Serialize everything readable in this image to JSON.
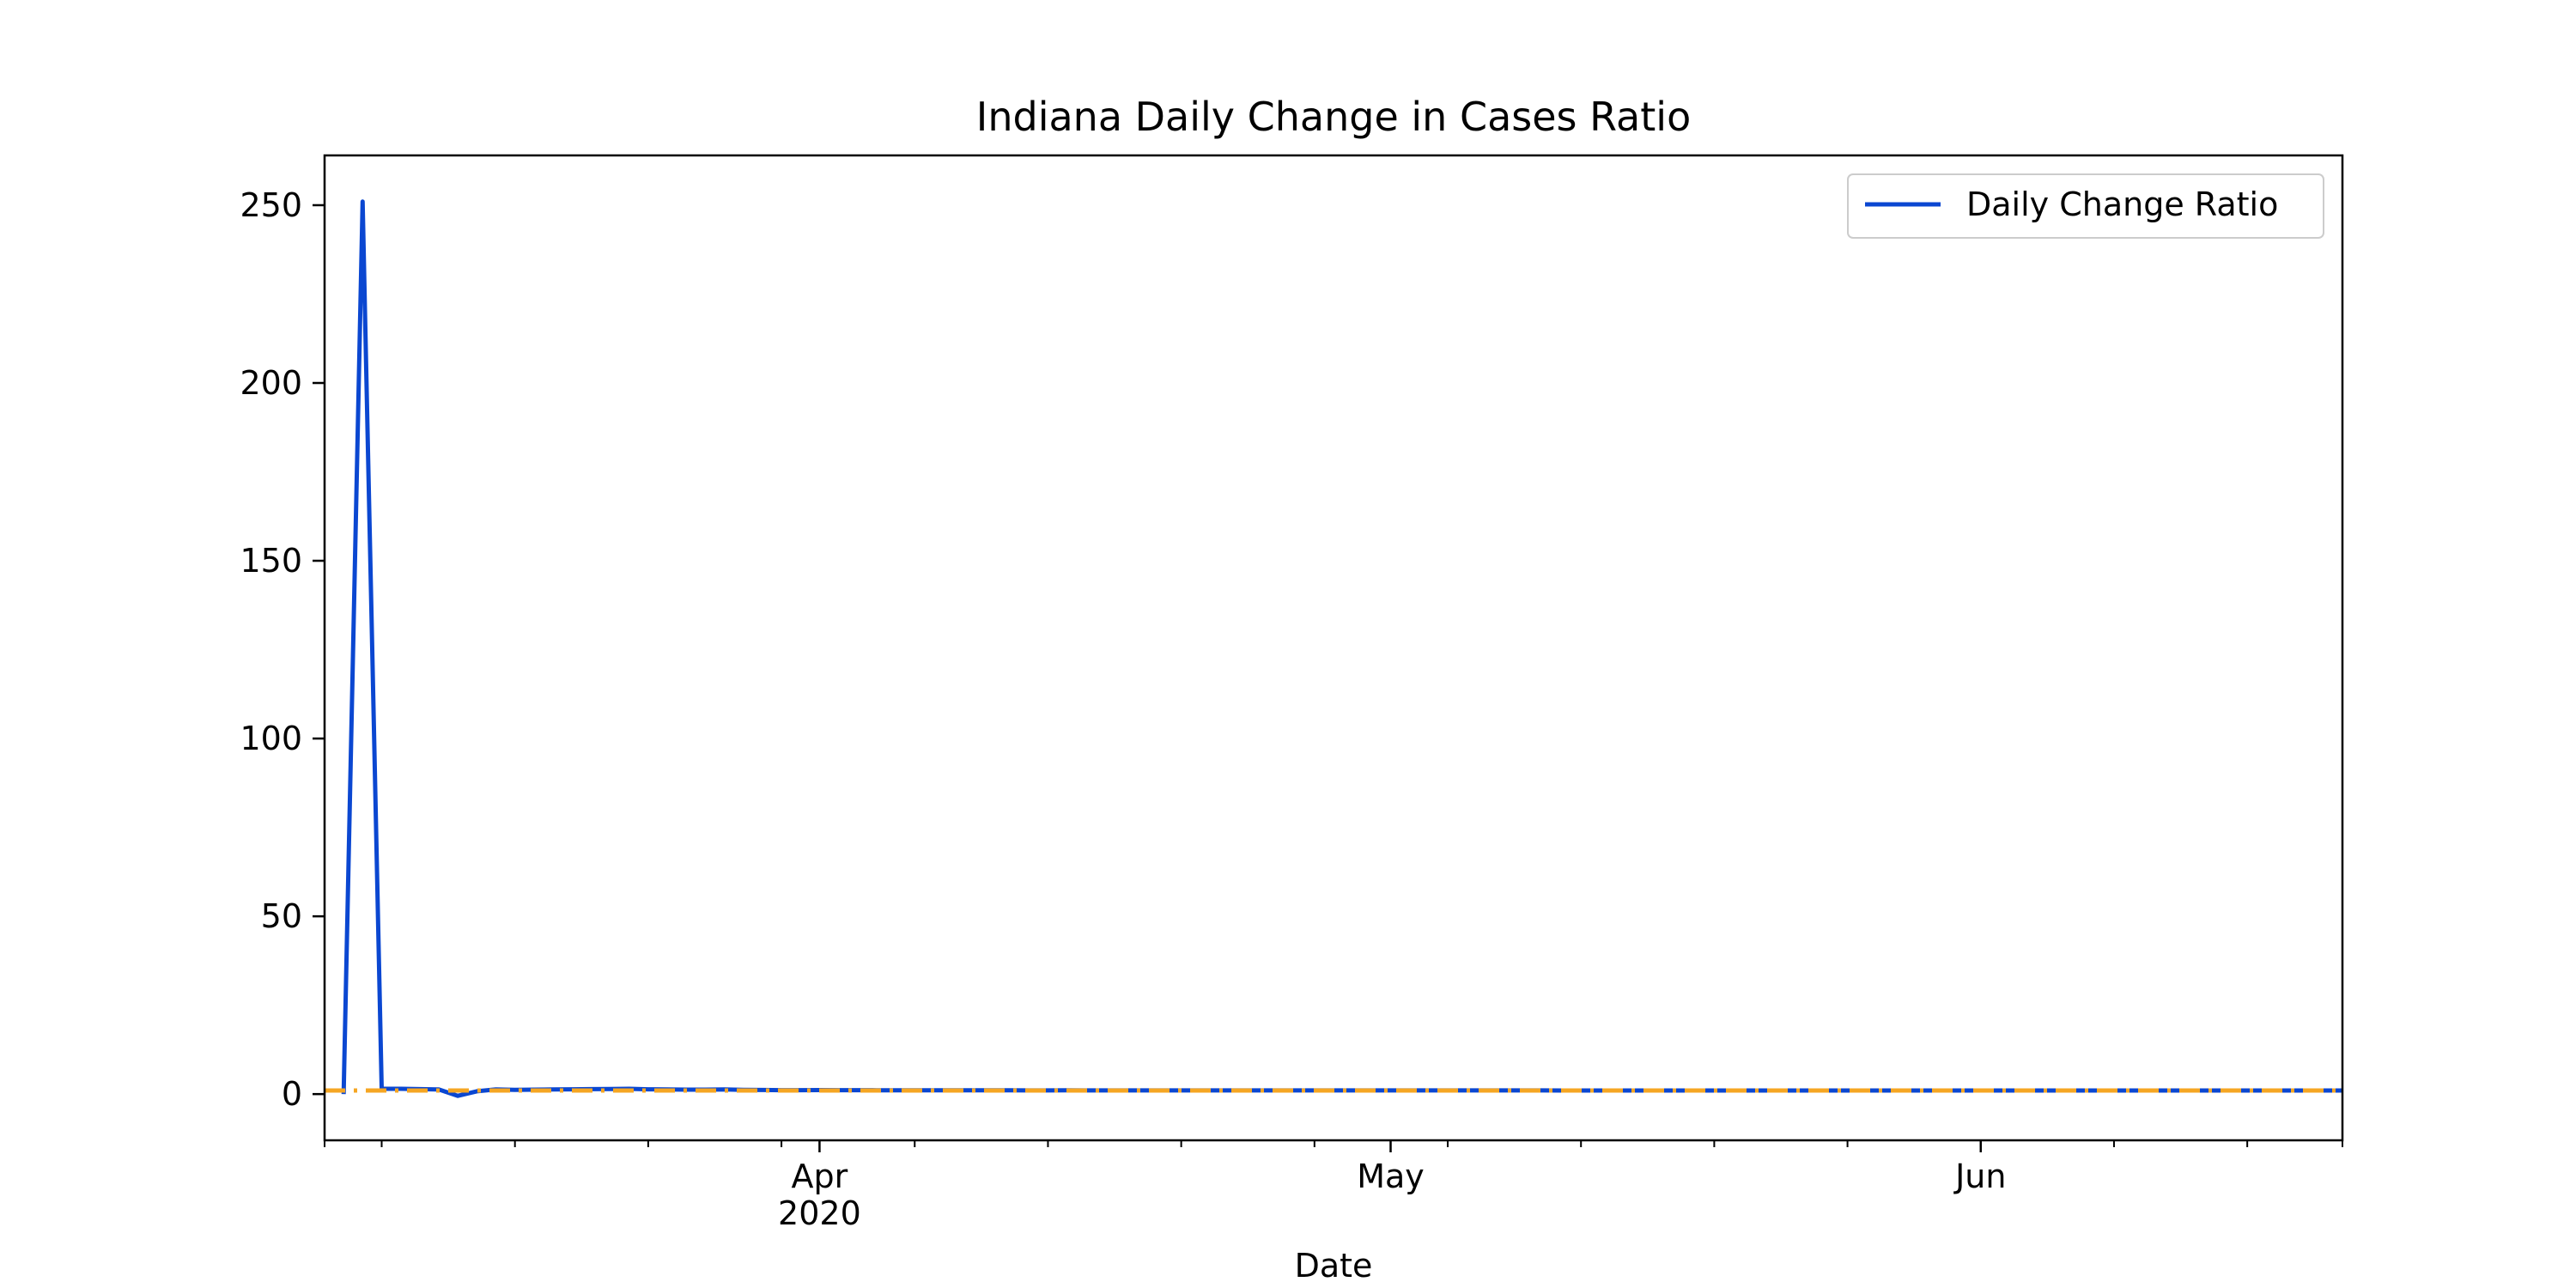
{
  "chart_data": {
    "type": "line",
    "title": "Indiana Daily Change in Cases Ratio",
    "xlabel": "Date",
    "ylabel": "",
    "x_range": [
      "2020-03-06",
      "2020-06-20"
    ],
    "ylim": [
      -13,
      264
    ],
    "grid": false,
    "legend_position": "top-right",
    "x_ticks": [
      {
        "date": "2020-04-01",
        "label": "Apr",
        "sublabel": "2020"
      },
      {
        "date": "2020-05-01",
        "label": "May",
        "sublabel": ""
      },
      {
        "date": "2020-06-01",
        "label": "Jun",
        "sublabel": ""
      }
    ],
    "y_ticks": [
      0,
      50,
      100,
      150,
      200,
      250
    ],
    "colors": {
      "series": "#0b47d1",
      "reference": "#f5a623"
    },
    "series": [
      {
        "name": "Daily Change Ratio",
        "color": "#0b47d1",
        "points": [
          [
            "2020-03-07",
            0
          ],
          [
            "2020-03-08",
            251
          ],
          [
            "2020-03-09",
            1.5
          ],
          [
            "2020-03-10",
            1.5
          ],
          [
            "2020-03-11",
            1.4
          ],
          [
            "2020-03-12",
            1.3
          ],
          [
            "2020-03-13",
            -0.5
          ],
          [
            "2020-03-14",
            0.8
          ],
          [
            "2020-03-15",
            1.3
          ],
          [
            "2020-03-16",
            1.2
          ],
          [
            "2020-03-17",
            1.25
          ],
          [
            "2020-03-18",
            1.3
          ],
          [
            "2020-03-19",
            1.35
          ],
          [
            "2020-03-20",
            1.4
          ],
          [
            "2020-03-21",
            1.45
          ],
          [
            "2020-03-22",
            1.5
          ],
          [
            "2020-03-23",
            1.35
          ],
          [
            "2020-03-24",
            1.3
          ],
          [
            "2020-03-25",
            1.25
          ],
          [
            "2020-03-26",
            1.25
          ],
          [
            "2020-03-27",
            1.3
          ],
          [
            "2020-03-28",
            1.2
          ],
          [
            "2020-03-29",
            1.15
          ],
          [
            "2020-03-30",
            1.1
          ],
          [
            "2020-03-31",
            1.1
          ],
          [
            "2020-04-01",
            1.12
          ],
          [
            "2020-04-02",
            1.1
          ],
          [
            "2020-04-03",
            1.1
          ],
          [
            "2020-04-04",
            1.08
          ],
          [
            "2020-04-05",
            1.07
          ],
          [
            "2020-04-06",
            1.06
          ],
          [
            "2020-04-07",
            1.06
          ],
          [
            "2020-04-08",
            1.07
          ],
          [
            "2020-04-09",
            1.06
          ],
          [
            "2020-04-10",
            1.05
          ],
          [
            "2020-04-11",
            1.05
          ],
          [
            "2020-04-12",
            1.04
          ],
          [
            "2020-04-13",
            1.04
          ],
          [
            "2020-04-14",
            1.05
          ],
          [
            "2020-04-15",
            1.04
          ],
          [
            "2020-04-16",
            1.04
          ],
          [
            "2020-04-17",
            1.04
          ],
          [
            "2020-04-18",
            1.03
          ],
          [
            "2020-04-19",
            1.03
          ],
          [
            "2020-04-20",
            1.03
          ],
          [
            "2020-04-21",
            1.03
          ],
          [
            "2020-04-22",
            1.03
          ],
          [
            "2020-04-23",
            1.03
          ],
          [
            "2020-04-24",
            1.03
          ],
          [
            "2020-04-25",
            1.03
          ],
          [
            "2020-04-26",
            1.02
          ],
          [
            "2020-04-27",
            1.02
          ],
          [
            "2020-04-28",
            1.02
          ],
          [
            "2020-04-29",
            1.02
          ],
          [
            "2020-04-30",
            1.02
          ],
          [
            "2020-05-01",
            1.02
          ],
          [
            "2020-05-02",
            1.02
          ],
          [
            "2020-05-03",
            1.02
          ],
          [
            "2020-05-04",
            1.02
          ],
          [
            "2020-05-05",
            1.02
          ],
          [
            "2020-05-06",
            1.02
          ],
          [
            "2020-05-07",
            1.02
          ],
          [
            "2020-05-08",
            1.02
          ],
          [
            "2020-05-09",
            1.02
          ],
          [
            "2020-05-10",
            1.01
          ],
          [
            "2020-05-11",
            1.01
          ],
          [
            "2020-05-12",
            1.01
          ],
          [
            "2020-05-13",
            1.01
          ],
          [
            "2020-05-14",
            1.01
          ],
          [
            "2020-05-15",
            1.01
          ],
          [
            "2020-05-16",
            1.01
          ],
          [
            "2020-05-17",
            1.01
          ],
          [
            "2020-05-18",
            1.01
          ],
          [
            "2020-05-19",
            1.01
          ],
          [
            "2020-05-20",
            1.01
          ],
          [
            "2020-05-21",
            1.01
          ],
          [
            "2020-05-22",
            1.01
          ],
          [
            "2020-05-23",
            1.01
          ],
          [
            "2020-05-24",
            1.01
          ],
          [
            "2020-05-25",
            1.01
          ],
          [
            "2020-05-26",
            1.01
          ],
          [
            "2020-05-27",
            1.01
          ],
          [
            "2020-05-28",
            1.01
          ],
          [
            "2020-05-29",
            1.01
          ],
          [
            "2020-05-30",
            1.01
          ],
          [
            "2020-05-31",
            1.01
          ],
          [
            "2020-06-01",
            1.01
          ],
          [
            "2020-06-02",
            1.01
          ],
          [
            "2020-06-03",
            1.01
          ],
          [
            "2020-06-04",
            1.01
          ],
          [
            "2020-06-05",
            1.01
          ],
          [
            "2020-06-06",
            1.01
          ],
          [
            "2020-06-07",
            1.01
          ],
          [
            "2020-06-08",
            1.01
          ],
          [
            "2020-06-09",
            1.01
          ],
          [
            "2020-06-10",
            1.01
          ],
          [
            "2020-06-11",
            1.01
          ],
          [
            "2020-06-12",
            1.01
          ],
          [
            "2020-06-13",
            1.01
          ],
          [
            "2020-06-14",
            1.01
          ],
          [
            "2020-06-15",
            1.01
          ],
          [
            "2020-06-16",
            1.01
          ],
          [
            "2020-06-17",
            1.01
          ],
          [
            "2020-06-18",
            1.01
          ],
          [
            "2020-06-19",
            1.01
          ],
          [
            "2020-06-20",
            1.01
          ]
        ]
      }
    ],
    "reference_line": {
      "y": 1,
      "color": "#f5a623",
      "style": "dashdot"
    }
  }
}
